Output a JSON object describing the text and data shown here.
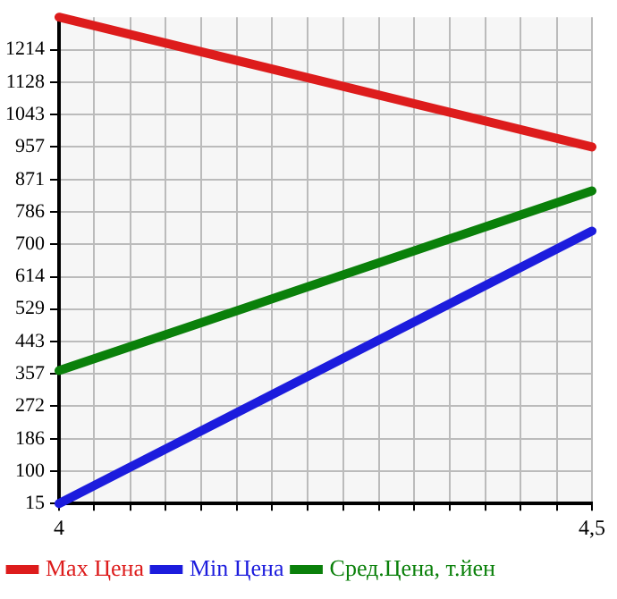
{
  "chart_data": {
    "type": "line",
    "x": [
      4,
      4.5
    ],
    "series": [
      {
        "name": "Max Цена",
        "color": "#dd1c1c",
        "values": [
          1300,
          957
        ]
      },
      {
        "name": "Min Цена",
        "color": "#1c1cdd",
        "values": [
          15,
          735
        ]
      },
      {
        "name": "Сред.Цена, т.йен",
        "color": "#0a800a",
        "values": [
          366,
          841
        ]
      }
    ],
    "xlim": [
      4,
      4.5
    ],
    "xticks": [
      4,
      {
        "value": 4.033,
        "label": null
      },
      {
        "value": 4.067,
        "label": null
      },
      {
        "value": 4.1,
        "label": null
      },
      {
        "value": 4.133,
        "label": null
      },
      {
        "value": 4.167,
        "label": null
      },
      {
        "value": 4.2,
        "label": null
      },
      {
        "value": 4.233,
        "label": null
      },
      {
        "value": 4.267,
        "label": null
      },
      {
        "value": 4.3,
        "label": null
      },
      {
        "value": 4.333,
        "label": null
      },
      {
        "value": 4.367,
        "label": null
      },
      {
        "value": 4.4,
        "label": null
      },
      {
        "value": 4.433,
        "label": null
      },
      {
        "value": 4.467,
        "label": null
      },
      {
        "value": 4.5,
        "label": "4,5"
      }
    ],
    "ylim": [
      15,
      1300
    ],
    "yticks": [
      15,
      100,
      186,
      272,
      357,
      443,
      529,
      614,
      700,
      786,
      871,
      957,
      1043,
      1128,
      1214
    ],
    "grid": true,
    "legend": "bottom",
    "marker": "none",
    "line_style": "solid"
  }
}
